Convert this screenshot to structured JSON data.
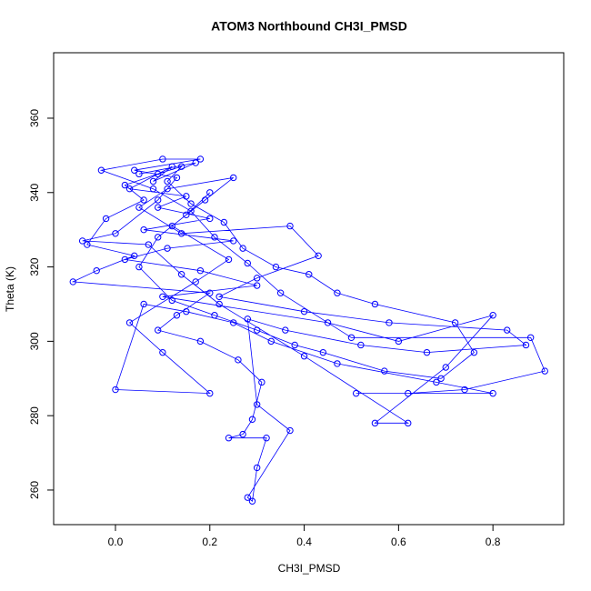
{
  "chart_data": {
    "type": "line",
    "marker": "circle",
    "title": "ATOM3 Northbound CH3I_PMSD",
    "xlabel": "CH3I_PMSD",
    "ylabel": "Theta (K)",
    "color": "#0000ff",
    "xlim": [
      -0.131,
      0.95
    ],
    "ylim": [
      250.7,
      377.6
    ],
    "xticks": [
      {
        "value": 0,
        "label": "0.0"
      },
      0.2,
      0.4,
      0.6,
      0.8
    ],
    "yticks": [
      260,
      280,
      300,
      320,
      340,
      360
    ],
    "x": [
      0.05,
      0.17,
      0.08,
      0.12,
      0.03,
      0.15,
      0.09,
      0.2,
      0.06,
      0.25,
      0.11,
      0.02,
      0.18,
      0.3,
      0.1,
      0.45,
      0.6,
      0.8,
      0.7,
      0.55,
      0.62,
      0.4,
      0.22,
      0.14,
      0.07,
      -0.07,
      0.0,
      0.09,
      0.13,
      0.04,
      0.18,
      0.1,
      -0.03,
      0.08,
      0.16,
      0.21,
      0.28,
      0.35,
      0.5,
      0.88,
      0.91,
      0.74,
      0.62,
      0.51,
      0.8,
      0.68,
      0.47,
      0.33,
      0.25,
      0.15,
      0.06,
      0.0,
      0.2,
      0.1,
      0.03,
      0.17,
      0.24,
      0.12,
      0.19,
      0.25,
      0.11,
      0.05,
      0.14,
      0.37,
      0.43,
      0.3,
      0.22,
      0.4,
      0.58,
      0.83,
      0.87,
      0.66,
      0.52,
      0.36,
      0.28,
      0.3,
      0.37,
      0.28,
      0.29,
      0.3,
      0.32,
      0.24,
      0.27,
      0.29,
      0.31,
      0.26,
      0.18,
      0.09,
      0.13,
      0.2,
      -0.09,
      -0.04,
      0.04,
      -0.06,
      -0.02,
      0.06,
      0.02,
      0.09,
      0.14,
      0.11,
      0.16,
      0.23,
      0.27,
      0.34,
      0.41,
      0.47,
      0.55,
      0.72,
      0.76,
      0.69,
      0.57,
      0.44,
      0.38,
      0.3,
      0.21,
      0.12,
      0.05,
      0.09,
      0.15,
      0.2
    ],
    "y": [
      345,
      348,
      343,
      347,
      341,
      339,
      336,
      333,
      330,
      327,
      325,
      322,
      319,
      315,
      312,
      305,
      300,
      307,
      293,
      278,
      278,
      296,
      310,
      318,
      326,
      327,
      329,
      338,
      344,
      346,
      349,
      349,
      346,
      341,
      335,
      328,
      321,
      313,
      301,
      301,
      292,
      287,
      286,
      286,
      286,
      289,
      294,
      300,
      305,
      308,
      310,
      287,
      286,
      297,
      305,
      316,
      322,
      331,
      338,
      344,
      341,
      336,
      329,
      331,
      323,
      317,
      312,
      308,
      305,
      303,
      299,
      297,
      299,
      303,
      306,
      283,
      276,
      258,
      257,
      266,
      274,
      274,
      275,
      279,
      289,
      295,
      300,
      303,
      307,
      313,
      316,
      319,
      323,
      326,
      333,
      338,
      342,
      345,
      347,
      343,
      337,
      332,
      325,
      320,
      318,
      313,
      310,
      305,
      297,
      290,
      292,
      297,
      299,
      303,
      307,
      311,
      320,
      328,
      334,
      340
    ]
  }
}
